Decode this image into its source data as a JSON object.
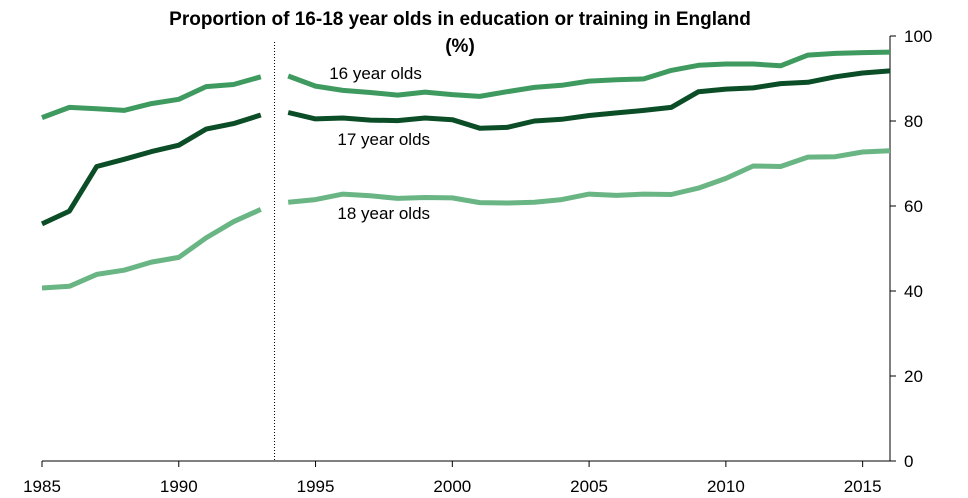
{
  "chart_data": {
    "type": "line",
    "title": "Proportion of 16-18 year olds in education or training in England",
    "subtitle": "(%)",
    "xlabel": "",
    "ylabel": "",
    "xlim": [
      1985,
      2016
    ],
    "ylim": [
      0,
      100
    ],
    "x_ticks": [
      1985,
      1990,
      1995,
      2000,
      2005,
      2010,
      2015
    ],
    "y_ticks": [
      0,
      20,
      40,
      60,
      80,
      100
    ],
    "y_axis_side": "right",
    "grid": false,
    "legend": "inline labels",
    "break_year": 1993.5,
    "series": [
      {
        "name": "16 year olds",
        "color": "#3f9a5f",
        "segments": [
          {
            "x": [
              1985,
              1986,
              1987,
              1988,
              1989,
              1990,
              1991,
              1992,
              1993
            ],
            "y": [
              80.8,
              83.2,
              82.9,
              82.5,
              84.1,
              85.1,
              88.1,
              88.6,
              90.4
            ]
          },
          {
            "x": [
              1994,
              1995,
              1996,
              1997,
              1998,
              1999,
              2000,
              2001,
              2002,
              2003,
              2004,
              2005,
              2006,
              2007,
              2008,
              2009,
              2010,
              2011,
              2012,
              2013,
              2014,
              2015,
              2016
            ],
            "y": [
              90.6,
              88.2,
              87.2,
              86.7,
              86.1,
              86.8,
              86.2,
              85.8,
              86.9,
              87.9,
              88.4,
              89.4,
              89.7,
              89.9,
              91.9,
              93.1,
              93.4,
              93.4,
              93.0,
              95.5,
              95.9,
              96.1,
              96.2
            ]
          }
        ]
      },
      {
        "name": "17 year olds",
        "color": "#0b4d26",
        "segments": [
          {
            "x": [
              1985,
              1986,
              1987,
              1988,
              1989,
              1990,
              1991,
              1992,
              1993
            ],
            "y": [
              55.8,
              58.8,
              69.3,
              71.0,
              72.8,
              74.3,
              78.1,
              79.4,
              81.4
            ]
          },
          {
            "x": [
              1994,
              1995,
              1996,
              1997,
              1998,
              1999,
              2000,
              2001,
              2002,
              2003,
              2004,
              2005,
              2006,
              2007,
              2008,
              2009,
              2010,
              2011,
              2012,
              2013,
              2014,
              2015,
              2016
            ],
            "y": [
              82.0,
              80.5,
              80.7,
              80.2,
              80.1,
              80.7,
              80.3,
              78.3,
              78.5,
              80.0,
              80.4,
              81.3,
              81.9,
              82.5,
              83.2,
              86.9,
              87.5,
              87.8,
              88.8,
              89.1,
              90.4,
              91.3,
              91.8
            ]
          }
        ]
      },
      {
        "name": "18 year olds",
        "color": "#6ab584",
        "segments": [
          {
            "x": [
              1985,
              1986,
              1987,
              1988,
              1989,
              1990,
              1991,
              1992,
              1993
            ],
            "y": [
              40.7,
              41.1,
              43.9,
              44.9,
              46.8,
              47.9,
              52.5,
              56.3,
              59.2
            ]
          },
          {
            "x": [
              1994,
              1995,
              1996,
              1997,
              1998,
              1999,
              2000,
              2001,
              2002,
              2003,
              2004,
              2005,
              2006,
              2007,
              2008,
              2009,
              2010,
              2011,
              2012,
              2013,
              2014,
              2015,
              2016
            ],
            "y": [
              60.9,
              61.5,
              62.8,
              62.4,
              61.8,
              62.0,
              61.9,
              60.8,
              60.7,
              60.9,
              61.5,
              62.8,
              62.5,
              62.8,
              62.7,
              64.2,
              66.5,
              69.4,
              69.3,
              71.5,
              71.6,
              72.7,
              73.0
            ]
          }
        ]
      }
    ],
    "annotations": [
      {
        "text": "16 year olds",
        "series": 0,
        "x": 1995.5,
        "y": 89.9
      },
      {
        "text": "17 year olds",
        "series": 1,
        "x": 1995.8,
        "y": 74.3
      },
      {
        "text": "18 year olds",
        "series": 2,
        "x": 1995.8,
        "y": 56.9
      }
    ]
  }
}
